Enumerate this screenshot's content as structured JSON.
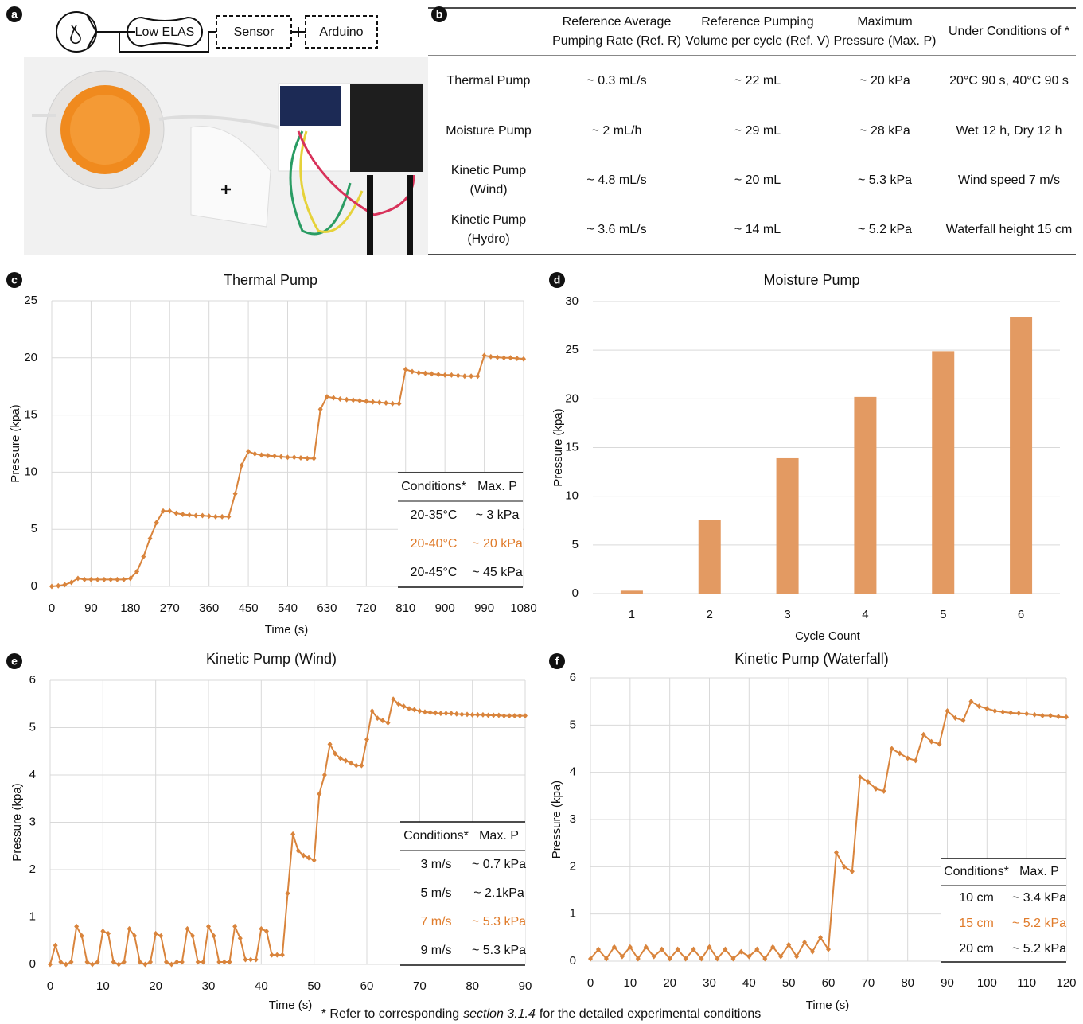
{
  "panel_labels": [
    "a",
    "b",
    "c",
    "d",
    "e",
    "f"
  ],
  "diagram": {
    "nodes": [
      "Low ELAS",
      "Sensor",
      "Arduino"
    ]
  },
  "table": {
    "header": [
      [
        "Reference Average",
        "Pumping Rate (Ref. R)"
      ],
      [
        "Reference Pumping",
        "Volume per cycle (Ref. V)"
      ],
      [
        "Maximum",
        "Pressure (Max. P)"
      ],
      [
        "Under Conditions of *"
      ]
    ],
    "rows": [
      [
        [
          "Thermal Pump"
        ],
        "~ 0.3 mL/s",
        "~ 22 mL",
        "~ 20 kPa",
        "20°C 90 s, 40°C 90 s"
      ],
      [
        [
          "Moisture Pump"
        ],
        "~ 2 mL/h",
        "~ 29 mL",
        "~ 28 kPa",
        "Wet 12 h, Dry 12 h"
      ],
      [
        [
          "Kinetic Pump",
          "(Wind)"
        ],
        "~ 4.8 mL/s",
        "~ 20 mL",
        "~ 5.3 kPa",
        "Wind speed 7 m/s"
      ],
      [
        [
          "Kinetic Pump",
          "(Hydro)"
        ],
        "~ 3.6 mL/s",
        "~ 14 mL",
        "~ 5.2 kPa",
        "Waterfall height 15 cm"
      ]
    ]
  },
  "chart_data": [
    {
      "type": "line",
      "title": "Thermal Pump",
      "x_label": "Time (s)",
      "y_label": "Pressure (kpa)",
      "xlim": [
        0,
        1080
      ],
      "xticks": [
        0,
        90,
        180,
        270,
        360,
        450,
        540,
        630,
        720,
        810,
        900,
        990,
        1080
      ],
      "ylim": [
        0,
        25
      ],
      "yticks": [
        0,
        5,
        10,
        15,
        20,
        25
      ],
      "grid": true,
      "color": "#d9843c",
      "x": [
        0,
        15,
        30,
        45,
        60,
        75,
        90,
        105,
        120,
        135,
        150,
        165,
        180,
        195,
        210,
        225,
        240,
        255,
        270,
        285,
        300,
        315,
        330,
        345,
        360,
        375,
        390,
        405,
        420,
        435,
        450,
        465,
        480,
        495,
        510,
        525,
        540,
        555,
        570,
        585,
        600,
        615,
        630,
        645,
        660,
        675,
        690,
        705,
        720,
        735,
        750,
        765,
        780,
        795,
        810,
        825,
        840,
        855,
        870,
        885,
        900,
        915,
        930,
        945,
        960,
        975,
        990,
        1005,
        1020,
        1035,
        1050,
        1065,
        1080
      ],
      "values": [
        0,
        0.05,
        0.15,
        0.35,
        0.7,
        0.6,
        0.6,
        0.6,
        0.6,
        0.6,
        0.6,
        0.6,
        0.7,
        1.3,
        2.6,
        4.2,
        5.6,
        6.6,
        6.6,
        6.4,
        6.3,
        6.25,
        6.2,
        6.2,
        6.15,
        6.1,
        6.1,
        6.1,
        8.1,
        10.6,
        11.8,
        11.6,
        11.5,
        11.45,
        11.4,
        11.35,
        11.3,
        11.3,
        11.25,
        11.2,
        11.2,
        15.5,
        16.6,
        16.5,
        16.4,
        16.35,
        16.3,
        16.25,
        16.2,
        16.15,
        16.1,
        16.05,
        16,
        16,
        19,
        18.8,
        18.7,
        18.65,
        18.6,
        18.55,
        18.5,
        18.5,
        18.45,
        18.4,
        18.4,
        18.4,
        20.2,
        20.1,
        20.05,
        20,
        20,
        19.95,
        19.9
      ],
      "conditions_table": {
        "header": [
          "Conditions*",
          "Max. P"
        ],
        "rows": [
          [
            "20-35°C",
            "~ 3 kPa"
          ],
          [
            "20-40°C",
            "~ 20 kPa"
          ],
          [
            "20-45°C",
            "~ 45 kPa"
          ]
        ],
        "highlight_row": 1,
        "highlight_color": "#e07b2a"
      }
    },
    {
      "type": "bar",
      "title": "Moisture Pump",
      "x_label": "Cycle Count",
      "y_label": "Pressure (kpa)",
      "categories": [
        "1",
        "2",
        "3",
        "4",
        "5",
        "6"
      ],
      "values": [
        0.3,
        7.6,
        13.9,
        20.2,
        24.9,
        28.4
      ],
      "ylim": [
        0,
        30
      ],
      "yticks": [
        0,
        5,
        10,
        15,
        20,
        25,
        30
      ],
      "grid": true,
      "color": "#e39a62"
    },
    {
      "type": "line",
      "title": "Kinetic Pump (Wind)",
      "x_label": "Time (s)",
      "y_label": "Pressure (kpa)",
      "xlim": [
        0,
        90
      ],
      "xticks": [
        0,
        10,
        20,
        30,
        40,
        50,
        60,
        70,
        80,
        90
      ],
      "ylim": [
        0,
        6
      ],
      "yticks": [
        0,
        1,
        2,
        3,
        4,
        5,
        6
      ],
      "grid": true,
      "color": "#d9843c",
      "x": [
        0,
        1,
        2,
        3,
        4,
        5,
        6,
        7,
        8,
        9,
        10,
        11,
        12,
        13,
        14,
        15,
        16,
        17,
        18,
        19,
        20,
        21,
        22,
        23,
        24,
        25,
        26,
        27,
        28,
        29,
        30,
        31,
        32,
        33,
        34,
        35,
        36,
        37,
        38,
        39,
        40,
        41,
        42,
        43,
        44,
        45,
        46,
        47,
        48,
        49,
        50,
        51,
        52,
        53,
        54,
        55,
        56,
        57,
        58,
        59,
        60,
        61,
        62,
        63,
        64,
        65,
        66,
        67,
        68,
        69,
        70,
        71,
        72,
        73,
        74,
        75,
        76,
        77,
        78,
        79,
        80,
        81,
        82,
        83,
        84,
        85,
        86,
        87,
        88,
        89,
        90
      ],
      "values": [
        0,
        0.4,
        0.05,
        0,
        0.05,
        0.8,
        0.6,
        0.05,
        0,
        0.05,
        0.7,
        0.65,
        0.05,
        0,
        0.05,
        0.75,
        0.6,
        0.05,
        0,
        0.05,
        0.65,
        0.6,
        0.05,
        0,
        0.05,
        0.05,
        0.75,
        0.6,
        0.05,
        0.05,
        0.8,
        0.6,
        0.05,
        0.05,
        0.05,
        0.8,
        0.55,
        0.1,
        0.1,
        0.1,
        0.75,
        0.7,
        0.2,
        0.2,
        0.2,
        1.5,
        2.75,
        2.4,
        2.3,
        2.25,
        2.2,
        3.6,
        4.0,
        4.65,
        4.45,
        4.35,
        4.3,
        4.25,
        4.2,
        4.2,
        4.75,
        5.35,
        5.2,
        5.15,
        5.1,
        5.6,
        5.5,
        5.45,
        5.4,
        5.38,
        5.35,
        5.33,
        5.32,
        5.31,
        5.3,
        5.3,
        5.3,
        5.29,
        5.28,
        5.28,
        5.27,
        5.27,
        5.27,
        5.26,
        5.26,
        5.26,
        5.25,
        5.25,
        5.25,
        5.25,
        5.25
      ],
      "conditions_table": {
        "header": [
          "Conditions*",
          "Max. P"
        ],
        "rows": [
          [
            "3 m/s",
            "~ 0.7 kPa"
          ],
          [
            "5 m/s",
            "~ 2.1kPa"
          ],
          [
            "7 m/s",
            "~ 5.3 kPa"
          ],
          [
            "9 m/s",
            "~ 5.3 kPa"
          ]
        ],
        "highlight_row": 2,
        "highlight_color": "#e07b2a"
      }
    },
    {
      "type": "line",
      "title": "Kinetic Pump (Waterfall)",
      "x_label": "Time (s)",
      "y_label": "Pressure (kpa)",
      "xlim": [
        0,
        120
      ],
      "xticks": [
        0,
        10,
        20,
        30,
        40,
        50,
        60,
        70,
        80,
        90,
        100,
        110,
        120
      ],
      "ylim": [
        0,
        6
      ],
      "yticks": [
        0,
        1,
        2,
        3,
        4,
        5,
        6
      ],
      "grid": true,
      "color": "#d9843c",
      "x": [
        0,
        2,
        4,
        6,
        8,
        10,
        12,
        14,
        16,
        18,
        20,
        22,
        24,
        26,
        28,
        30,
        32,
        34,
        36,
        38,
        40,
        42,
        44,
        46,
        48,
        50,
        52,
        54,
        56,
        58,
        60,
        62,
        64,
        66,
        68,
        70,
        72,
        74,
        76,
        78,
        80,
        82,
        84,
        86,
        88,
        90,
        92,
        94,
        96,
        98,
        100,
        102,
        104,
        106,
        108,
        110,
        112,
        114,
        116,
        118,
        120
      ],
      "values": [
        0.05,
        0.25,
        0.05,
        0.3,
        0.1,
        0.3,
        0.05,
        0.3,
        0.1,
        0.25,
        0.05,
        0.25,
        0.05,
        0.25,
        0.05,
        0.3,
        0.05,
        0.25,
        0.05,
        0.2,
        0.1,
        0.25,
        0.05,
        0.3,
        0.1,
        0.35,
        0.1,
        0.4,
        0.2,
        0.5,
        0.25,
        2.3,
        2.0,
        1.9,
        3.9,
        3.8,
        3.65,
        3.6,
        4.5,
        4.4,
        4.3,
        4.25,
        4.8,
        4.65,
        4.6,
        5.3,
        5.15,
        5.1,
        5.5,
        5.4,
        5.35,
        5.3,
        5.28,
        5.26,
        5.25,
        5.24,
        5.22,
        5.2,
        5.2,
        5.18,
        5.17
      ],
      "conditions_table": {
        "header": [
          "Conditions*",
          "Max. P"
        ],
        "rows": [
          [
            "10 cm",
            "~ 3.4 kPa"
          ],
          [
            "15 cm",
            "~ 5.2 kPa"
          ],
          [
            "20 cm",
            "~ 5.2 kPa"
          ]
        ],
        "highlight_row": 1,
        "highlight_color": "#e07b2a"
      }
    }
  ],
  "footnote": {
    "prefix": "* Refer to corresponding",
    "reference": "section 3.1.4",
    "suffix": "for the detailed experimental conditions"
  }
}
